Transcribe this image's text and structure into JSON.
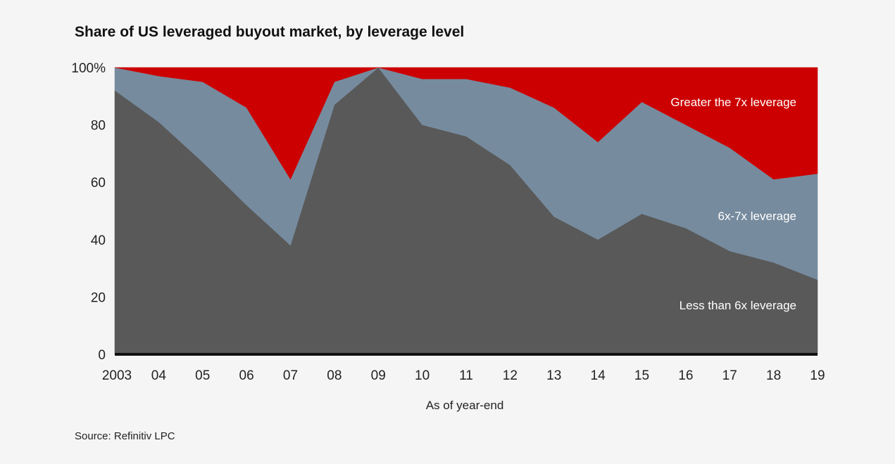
{
  "chart_data": {
    "type": "area",
    "stacked": true,
    "title": "Share of US leveraged buyout market, by leverage level",
    "xlabel": "As of year-end",
    "ylabel": "",
    "ylim": [
      0,
      100
    ],
    "grid": false,
    "x": [
      2003,
      2004,
      2005,
      2006,
      2007,
      2008,
      2009,
      2010,
      2011,
      2012,
      2013,
      2014,
      2015,
      2016,
      2017,
      2018,
      2019
    ],
    "x_tick_labels": [
      "2003",
      "04",
      "05",
      "06",
      "07",
      "08",
      "09",
      "10",
      "11",
      "12",
      "13",
      "14",
      "15",
      "16",
      "17",
      "18",
      "19"
    ],
    "y_ticks": [
      0,
      20,
      40,
      60,
      80,
      100
    ],
    "y_tick_labels": [
      "0",
      "20",
      "40",
      "60",
      "80",
      "100%"
    ],
    "series": [
      {
        "name": "Less than 6x leverage",
        "color": "#595959",
        "values": [
          92,
          81,
          67,
          52,
          38,
          87,
          100,
          80,
          76,
          66,
          48,
          40,
          49,
          44,
          36,
          32,
          26
        ]
      },
      {
        "name": "6x-7x leverage",
        "color": "#768b9e",
        "values": [
          8,
          16,
          28,
          34,
          23,
          8,
          0,
          16,
          20,
          27,
          38,
          34,
          39,
          36,
          36,
          29,
          37
        ]
      },
      {
        "name": "Greater the 7x leverage",
        "color": "#cc0000",
        "values": [
          0,
          3,
          5,
          14,
          39,
          5,
          0,
          4,
          4,
          7,
          14,
          26,
          12,
          20,
          28,
          39,
          37
        ]
      }
    ],
    "legend": "inline"
  },
  "source": "Source: Refinitiv LPC"
}
